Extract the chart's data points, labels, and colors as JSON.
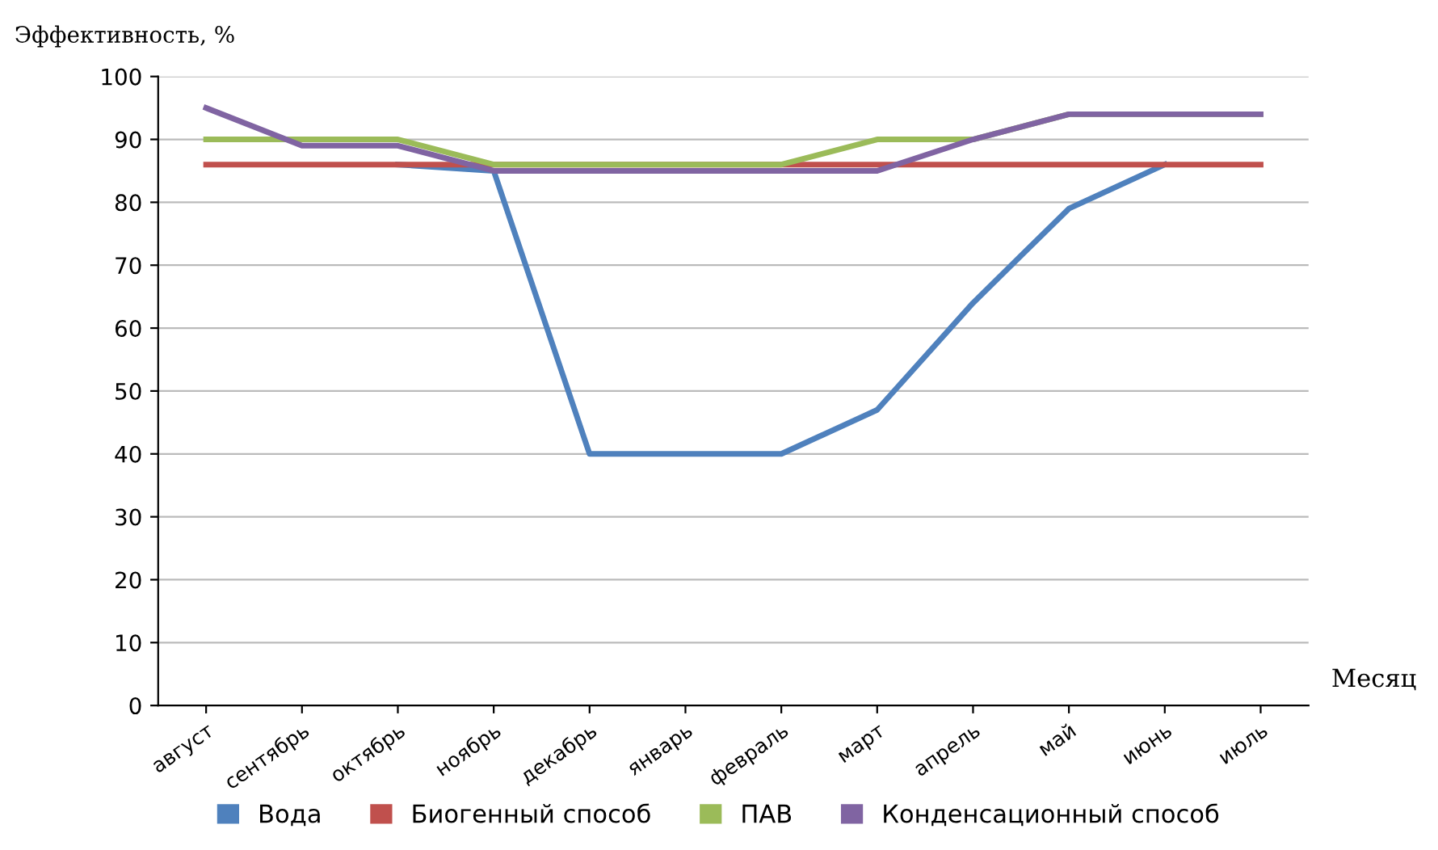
{
  "chart_data": {
    "type": "line",
    "ylabel": "Эффективность, %",
    "xlabel": "Месяц",
    "categories": [
      "август",
      "сентябрь",
      "октябрь",
      "ноябрь",
      "декабрь",
      "январь",
      "февраль",
      "март",
      "апрель",
      "май",
      "июнь",
      "июль"
    ],
    "series": [
      {
        "name": "Вода",
        "color": "#4f81bd",
        "values": [
          null,
          null,
          86,
          85,
          40,
          40,
          40,
          47,
          64,
          79,
          86,
          null
        ]
      },
      {
        "name": "Биогенный способ",
        "color": "#c0504d",
        "values": [
          86,
          86,
          86,
          86,
          86,
          86,
          86,
          86,
          86,
          86,
          86,
          86
        ]
      },
      {
        "name": "ПАВ",
        "color": "#9bbb59",
        "values": [
          90,
          90,
          90,
          86,
          86,
          86,
          86,
          90,
          90,
          94,
          94,
          94
        ]
      },
      {
        "name": "Конденсационный способ",
        "color": "#8064a2",
        "values": [
          95,
          89,
          89,
          85,
          85,
          85,
          85,
          85,
          90,
          94,
          94,
          94
        ]
      }
    ],
    "ylim": [
      0,
      100
    ],
    "yticks": [
      0,
      10,
      20,
      30,
      40,
      50,
      60,
      70,
      80,
      90,
      100
    ],
    "grid": "y",
    "legend": "bottom",
    "marker": "none",
    "line_style": "solid"
  }
}
